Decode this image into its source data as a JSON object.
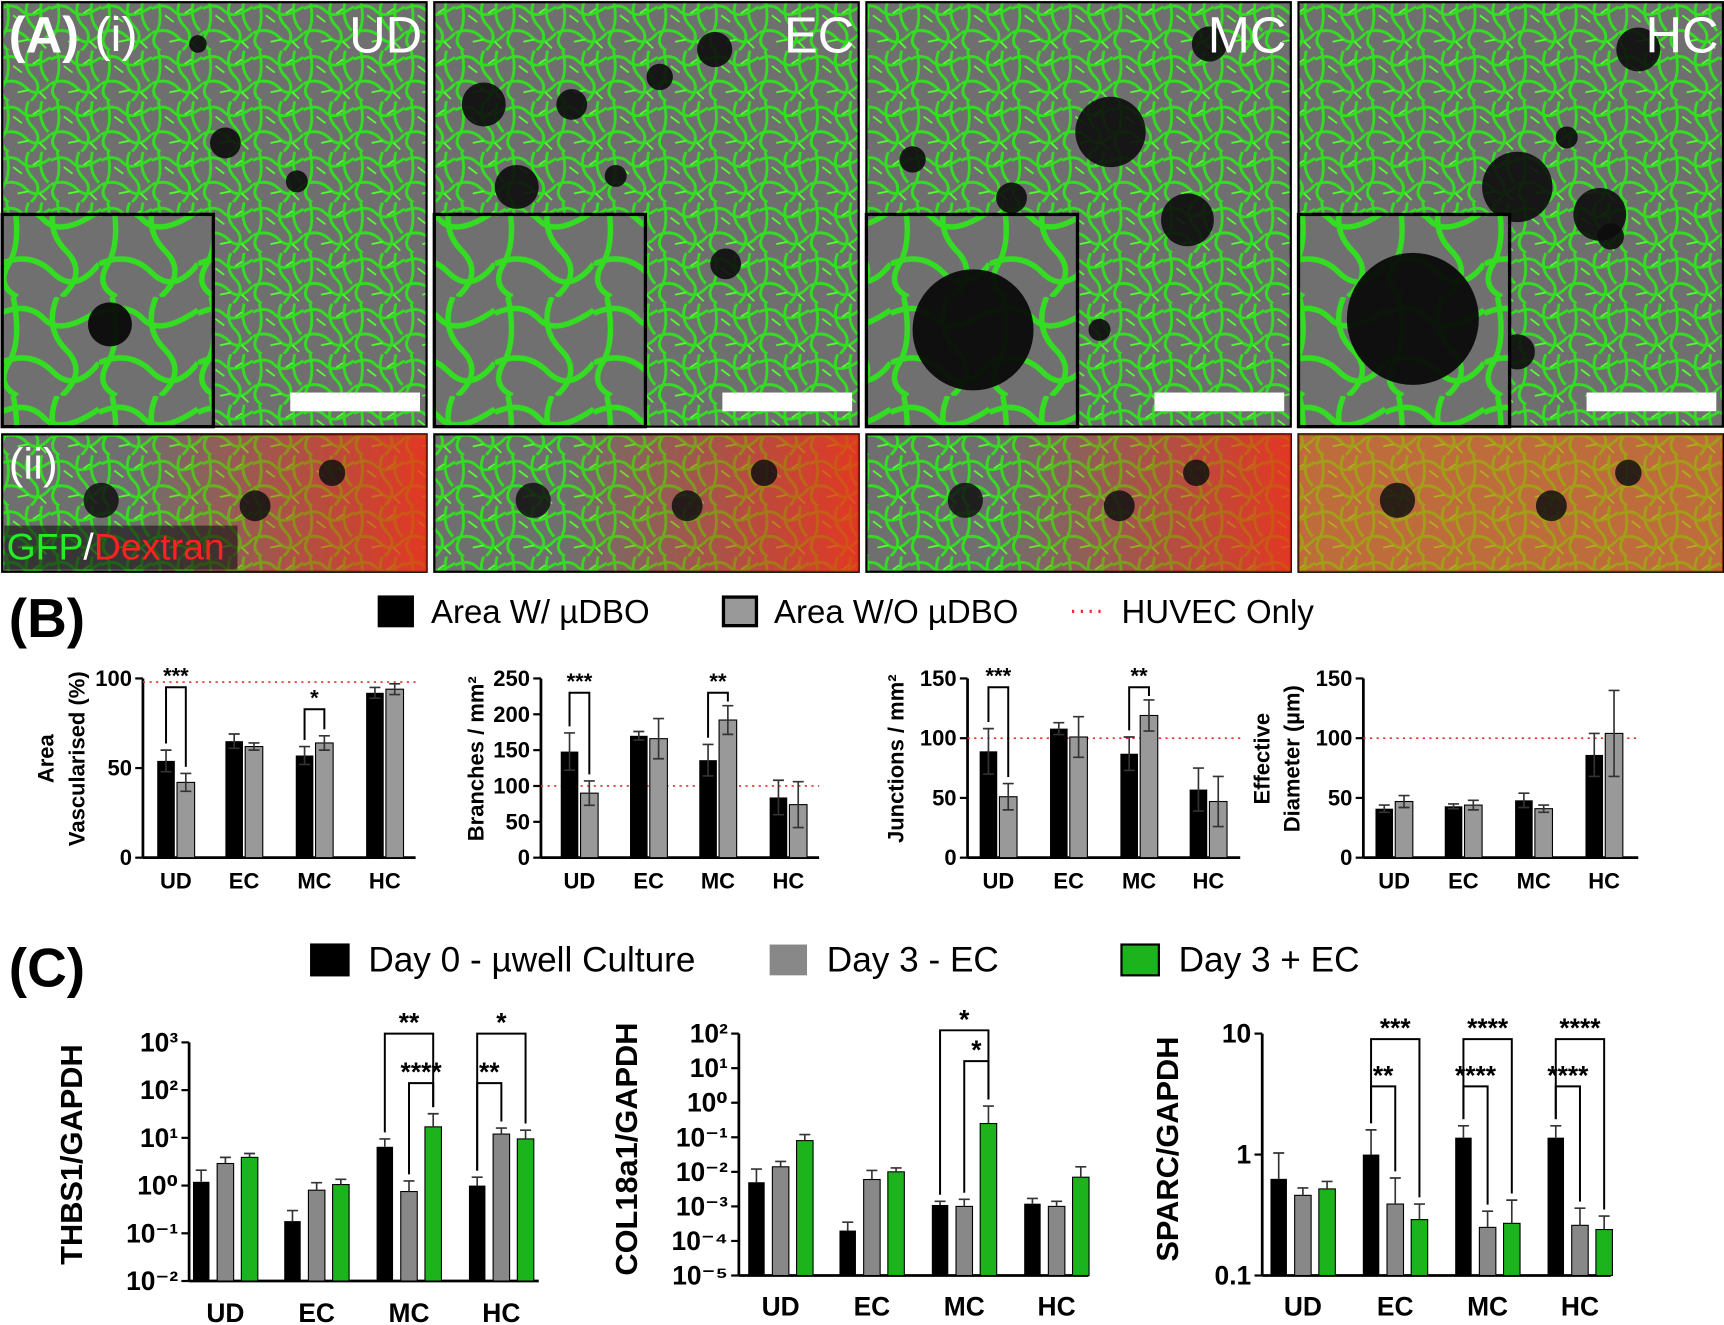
{
  "panel_a": {
    "label": "(A)",
    "row_labels": [
      "(i)",
      "(ii)"
    ],
    "conditions": [
      "UD",
      "EC",
      "MC",
      "HC"
    ],
    "stain": [
      "GFP",
      "/",
      "Dextran"
    ]
  },
  "panels": {
    "b": "(B)",
    "c": "(C)"
  },
  "chart_data": [
    {
      "type": "bar",
      "ylabel": [
        "Area",
        "Vascularised (%)"
      ],
      "categories": [
        "UD",
        "EC",
        "MC",
        "HC"
      ],
      "ylim": [
        0,
        100
      ],
      "yticks": [
        0,
        50,
        100
      ],
      "reference": 98,
      "reference_label": "HUVEC Only",
      "reference_color": "#e03030",
      "series": [
        {
          "name": "Area W/ µDBO",
          "color": "#000000",
          "values": [
            54,
            65,
            57,
            92
          ],
          "errors": [
            6,
            4,
            5,
            3
          ]
        },
        {
          "name": "Area W/O µDBO",
          "color": "#999999",
          "values": [
            42,
            62,
            64,
            94
          ],
          "errors": [
            5,
            2,
            4,
            3
          ]
        }
      ],
      "significance": [
        [
          "***"
        ],
        [],
        [
          "*"
        ],
        []
      ]
    },
    {
      "type": "bar",
      "ylabel": "Branches / mm²",
      "categories": [
        "UD",
        "EC",
        "MC",
        "HC"
      ],
      "ylim": [
        0,
        250
      ],
      "yticks": [
        0,
        50,
        100,
        150,
        200,
        250
      ],
      "reference": 100,
      "reference_color": "#e03030",
      "series": [
        {
          "color": "#000000",
          "values": [
            148,
            170,
            136,
            84
          ],
          "errors": [
            26,
            6,
            22,
            24
          ]
        },
        {
          "color": "#999999",
          "values": [
            90,
            166,
            192,
            74
          ],
          "errors": [
            17,
            28,
            20,
            32
          ]
        }
      ],
      "significance": [
        [
          "***"
        ],
        [],
        [
          "**"
        ],
        []
      ]
    },
    {
      "type": "bar",
      "ylabel": "Junctions / mm²",
      "categories": [
        "UD",
        "EC",
        "MC",
        "HC"
      ],
      "ylim": [
        0,
        150
      ],
      "yticks": [
        0,
        50,
        100,
        150
      ],
      "reference": 100,
      "reference_color": "#e03030",
      "series": [
        {
          "color": "#000000",
          "values": [
            89,
            108,
            87,
            57
          ],
          "errors": [
            19,
            5,
            14,
            18
          ]
        },
        {
          "color": "#999999",
          "values": [
            51,
            101,
            119,
            47
          ],
          "errors": [
            11,
            17,
            13,
            21
          ]
        }
      ],
      "significance": [
        [
          "***"
        ],
        [],
        [
          "**"
        ],
        []
      ]
    },
    {
      "type": "bar",
      "ylabel": [
        "Effective",
        "Diameter (µm)"
      ],
      "categories": [
        "UD",
        "EC",
        "MC",
        "HC"
      ],
      "ylim": [
        0,
        150
      ],
      "yticks": [
        0,
        50,
        100,
        150
      ],
      "reference": 100,
      "reference_color": "#e03030",
      "series": [
        {
          "color": "#000000",
          "values": [
            41,
            43,
            48,
            86
          ],
          "errors": [
            3,
            2,
            6,
            18
          ]
        },
        {
          "color": "#999999",
          "values": [
            47,
            44,
            41,
            104
          ],
          "errors": [
            5,
            4,
            3,
            36
          ]
        }
      ],
      "significance": [
        [],
        [],
        [],
        []
      ]
    },
    {
      "type": "bar",
      "log_scale": true,
      "ylabel": "THBS1/GAPDH",
      "categories": [
        "UD",
        "EC",
        "MC",
        "HC"
      ],
      "ylim": [
        0.01,
        1000
      ],
      "yticks": [
        {
          "value": 0.01,
          "label": "10⁻²"
        },
        {
          "value": 0.1,
          "label": "10⁻¹"
        },
        {
          "value": 1,
          "label": "10⁰"
        },
        {
          "value": 10,
          "label": "10¹"
        },
        {
          "value": 100,
          "label": "10²"
        },
        {
          "value": 1000,
          "label": "10³"
        }
      ],
      "series": [
        {
          "name": "Day 0 - µwell Culture",
          "color": "#000000",
          "values": [
            1.2,
            0.18,
            6.5,
            1.0
          ],
          "errors": [
            0.9,
            0.12,
            3,
            0.5
          ]
        },
        {
          "name": "Day 3 - EC",
          "color": "#888888",
          "values": [
            2.9,
            0.8,
            0.75,
            12
          ],
          "errors": [
            1,
            0.35,
            0.5,
            4
          ]
        },
        {
          "name": "Day 3 + EC",
          "color": "#1db31d",
          "values": [
            3.9,
            1.05,
            17,
            9.5
          ],
          "errors": [
            0.8,
            0.3,
            15,
            5
          ]
        }
      ],
      "significance": [
        [],
        [],
        [
          "**",
          "****"
        ],
        [
          "*",
          "**"
        ]
      ]
    },
    {
      "type": "bar",
      "log_scale": true,
      "ylabel": "COL18a1/GAPDH",
      "categories": [
        "UD",
        "EC",
        "MC",
        "HC"
      ],
      "ylim": [
        1e-05,
        100
      ],
      "yticks": [
        {
          "value": 1e-05,
          "label": "10⁻⁵"
        },
        {
          "value": 0.0001,
          "label": "10⁻⁴"
        },
        {
          "value": 0.001,
          "label": "10⁻³"
        },
        {
          "value": 0.01,
          "label": "10⁻²"
        },
        {
          "value": 0.1,
          "label": "10⁻¹"
        },
        {
          "value": 1,
          "label": "10⁰"
        },
        {
          "value": 10,
          "label": "10¹"
        },
        {
          "value": 100,
          "label": "10²"
        }
      ],
      "series": [
        {
          "color": "#000000",
          "values": [
            0.005,
            0.0002,
            0.0011,
            0.0012
          ],
          "errors": [
            0.007,
            0.00015,
            0.0003,
            0.0005
          ]
        },
        {
          "color": "#888888",
          "values": [
            0.014,
            0.006,
            0.001,
            0.001
          ],
          "errors": [
            0.006,
            0.005,
            0.0006,
            0.0004
          ]
        },
        {
          "color": "#1db31d",
          "values": [
            0.08,
            0.01,
            0.25,
            0.007
          ],
          "errors": [
            0.04,
            0.003,
            0.55,
            0.007
          ]
        }
      ],
      "significance": [
        [],
        [],
        [
          "*",
          "*"
        ],
        []
      ]
    },
    {
      "type": "bar",
      "log_scale": true,
      "ylabel": "SPARC/GAPDH",
      "categories": [
        "UD",
        "EC",
        "MC",
        "HC"
      ],
      "ylim": [
        0.1,
        10
      ],
      "yticks": [
        0.1,
        1,
        10
      ],
      "series": [
        {
          "color": "#000000",
          "values": [
            0.63,
            1.0,
            1.38,
            1.38
          ],
          "errors": [
            0.4,
            0.6,
            0.35,
            0.35
          ]
        },
        {
          "color": "#888888",
          "values": [
            0.46,
            0.39,
            0.25,
            0.26
          ],
          "errors": [
            0.07,
            0.25,
            0.09,
            0.1
          ]
        },
        {
          "color": "#1db31d",
          "values": [
            0.52,
            0.29,
            0.27,
            0.24
          ],
          "errors": [
            0.08,
            0.1,
            0.15,
            0.07
          ]
        }
      ],
      "significance": [
        [],
        [
          "***",
          "**"
        ],
        [
          "****",
          "****"
        ],
        [
          "****",
          "****"
        ]
      ]
    }
  ]
}
